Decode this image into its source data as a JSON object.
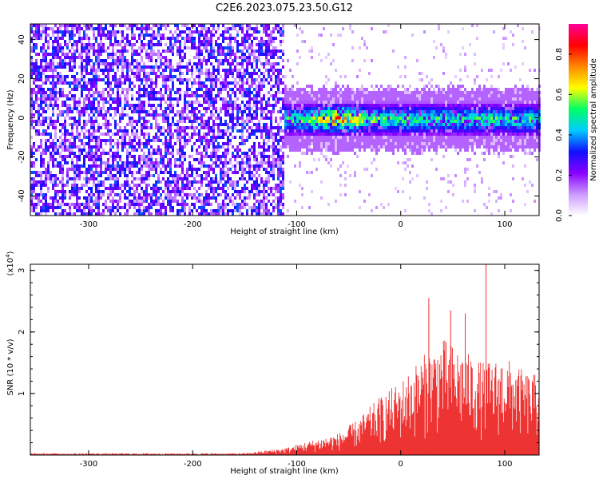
{
  "title": "C2E6.2023.075.23.50.G12",
  "chart_data": [
    {
      "type": "heatmap",
      "xlabel": "Height of straight line (km)",
      "ylabel": "Frequency (Hz)",
      "xlim": [
        -356,
        133
      ],
      "ylim": [
        -50,
        48
      ],
      "x_ticks": [
        -300,
        -200,
        -100,
        0,
        100
      ],
      "y_ticks": [
        -40,
        -20,
        0,
        20,
        40
      ],
      "colorbar": {
        "label": "Normalized spectral amplitude",
        "range": [
          0,
          0.95
        ],
        "ticks": [
          "0.0",
          "0.2",
          "0.4",
          "0.6",
          "0.8"
        ],
        "colors": [
          "#ffffff",
          "#cc99ff",
          "#8800ff",
          "#1010ff",
          "#00ccff",
          "#00ff66",
          "#ffff00",
          "#ff8800",
          "#ff0000",
          "#ff0099"
        ]
      },
      "regions": [
        {
          "x_range": [
            -356,
            -112
          ],
          "y_range": [
            -50,
            48
          ],
          "description_level": 0.25
        },
        {
          "x_range": [
            -112,
            133
          ],
          "y_range": [
            -12,
            10
          ],
          "peak_x": -60,
          "peak_y": 0,
          "peak_level": 0.9
        }
      ]
    },
    {
      "type": "line",
      "xlabel": "Height of straight line (km)",
      "ylabel": "SNR (10 * v/v)",
      "multiplier_label": "(x10",
      "multiplier_exp": "4",
      "xlim": [
        -356,
        133
      ],
      "ylim": [
        0,
        3.1
      ],
      "x_ticks": [
        -300,
        -200,
        -100,
        0,
        100
      ],
      "y_ticks": [
        1,
        2,
        3
      ],
      "color": "#ee3333",
      "envelope": {
        "x": [
          -356,
          -150,
          -110,
          -90,
          -60,
          -40,
          -20,
          0,
          20,
          40,
          60,
          80,
          100,
          120,
          133
        ],
        "y_max": [
          0.03,
          0.03,
          0.12,
          0.22,
          0.35,
          0.6,
          0.95,
          1.2,
          1.6,
          1.9,
          1.7,
          1.5,
          1.6,
          1.35,
          1.3
        ]
      },
      "spikes": [
        {
          "x": 27,
          "y": 2.55
        },
        {
          "x": 48,
          "y": 2.35
        },
        {
          "x": 82,
          "y": 3.1
        },
        {
          "x": 62,
          "y": 2.3
        }
      ]
    }
  ]
}
